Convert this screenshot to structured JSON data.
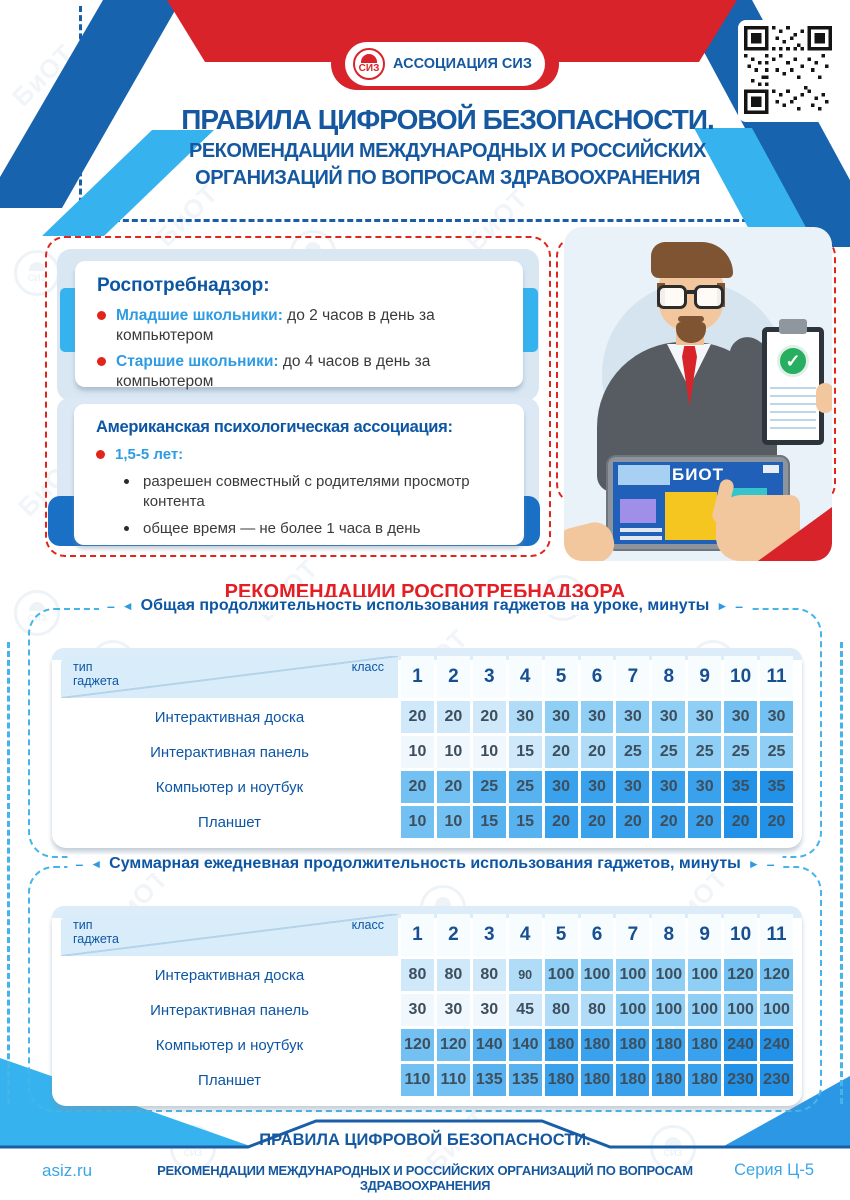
{
  "header": {
    "logo_text": "АССОЦИАЦИЯ СИЗ",
    "logo_icon": "siz-helmet-emblem",
    "siz_abbr": "СИЗ",
    "title_line1": "ПРАВИЛА ЦИФРОВОЙ БЕЗОПАСНОСТИ.",
    "title_line2": "РЕКОМЕНДАЦИИ МЕЖДУНАРОДНЫХ И РОССИЙСКИХ",
    "title_line3": "ОРГАНИЗАЦИЙ ПО ВОПРОСАМ ЗДРАВООХРАНЕНИЯ"
  },
  "info_boxes": [
    {
      "heading": "Роспотребнадзор:",
      "items": [
        {
          "label": "Младшие школьники: ",
          "text": "до 2 часов в день за компьютером"
        },
        {
          "label": "Старшие школьники: ",
          "text": "до 4 часов в день за компьютером"
        }
      ]
    },
    {
      "heading": "Американская психологическая ассоциация:",
      "age_label": "1,5-5 лет:",
      "sub_items": [
        "разрешен  совместный с родителями просмотр контента",
        "общее время — не более 1 часа в день"
      ]
    }
  ],
  "illustration": {
    "tablet_text": "БИОТ",
    "check_glyph": "✓"
  },
  "section_title": "РЕКОМЕНДАЦИИ РОСПОТРЕБНАДЗОРА",
  "tables": [
    {
      "title": "Общая продолжительность использования гаджетов на уроке, минуты",
      "corner_left": "тип гаджета",
      "corner_right": "класс",
      "columns": [
        "1",
        "2",
        "3",
        "4",
        "5",
        "6",
        "7",
        "8",
        "9",
        "10",
        "11"
      ],
      "rows": [
        {
          "label": "Интерактивная доска",
          "values": [
            20,
            20,
            20,
            30,
            30,
            30,
            30,
            30,
            30,
            30,
            30
          ],
          "shades": [
            1,
            1,
            1,
            2,
            3,
            3,
            3,
            3,
            3,
            4,
            4
          ]
        },
        {
          "label": "Интерактивная панель",
          "values": [
            10,
            10,
            10,
            15,
            20,
            20,
            25,
            25,
            25,
            25,
            25
          ],
          "shades": [
            0,
            0,
            0,
            1,
            2,
            2,
            3,
            3,
            3,
            3,
            3
          ]
        },
        {
          "label": "Компьютер и ноутбук",
          "values": [
            20,
            20,
            25,
            25,
            30,
            30,
            30,
            30,
            30,
            35,
            35
          ],
          "shades": [
            4,
            4,
            5,
            5,
            6,
            6,
            6,
            6,
            6,
            7,
            7
          ]
        },
        {
          "label": "Планшет",
          "values": [
            10,
            10,
            15,
            15,
            20,
            20,
            20,
            20,
            20,
            20,
            20
          ],
          "shades": [
            4,
            4,
            5,
            5,
            6,
            6,
            6,
            6,
            6,
            7,
            7
          ]
        }
      ]
    },
    {
      "title": "Суммарная ежедневная продолжительность использования гаджетов, минуты",
      "corner_left": "тип гаджета",
      "corner_right": "класс",
      "columns": [
        "1",
        "2",
        "3",
        "4",
        "5",
        "6",
        "7",
        "8",
        "9",
        "10",
        "11"
      ],
      "rows": [
        {
          "label": "Интерактивная доска",
          "values": [
            80,
            80,
            80,
            90,
            100,
            100,
            100,
            100,
            100,
            120,
            120
          ],
          "shades": [
            1,
            1,
            1,
            2,
            3,
            3,
            3,
            3,
            3,
            4,
            4
          ]
        },
        {
          "label": "Интерактивная панель",
          "values": [
            30,
            30,
            30,
            45,
            80,
            80,
            100,
            100,
            100,
            100,
            100
          ],
          "shades": [
            0,
            0,
            0,
            1,
            2,
            2,
            3,
            3,
            3,
            3,
            3
          ]
        },
        {
          "label": "Компьютер и ноутбук",
          "values": [
            120,
            120,
            140,
            140,
            180,
            180,
            180,
            180,
            180,
            240,
            240
          ],
          "shades": [
            4,
            4,
            5,
            5,
            6,
            6,
            6,
            6,
            6,
            7,
            7
          ]
        },
        {
          "label": "Планшет",
          "values": [
            110,
            110,
            135,
            135,
            180,
            180,
            180,
            180,
            180,
            230,
            230
          ],
          "shades": [
            4,
            4,
            5,
            5,
            6,
            6,
            6,
            6,
            6,
            7,
            7
          ]
        }
      ]
    }
  ],
  "footer": {
    "site": "asiz.ru",
    "line1": "ПРАВИЛА ЦИФРОВОЙ БЕЗОПАСНОСТИ.",
    "line2": "РЕКОМЕНДАЦИИ МЕЖДУНАРОДНЫХ И РОССИЙСКИХ ОРГАНИЗАЦИЙ ПО ВОПРОСАМ ЗДРАВООХРАНЕНИЯ",
    "series": "Серия Ц-5"
  },
  "decor": {
    "watermark_text": "БиОТ",
    "watermark_logo": "siz-emblem-ring",
    "colors": {
      "dark_blue": "#1b5ea8",
      "banner_red": "#d8232a",
      "title_red": "#e31e24",
      "cyan_accent": "#36b3ee",
      "link_blue": "#2d9ce2",
      "table_blue_dark": "#2292e8",
      "table_blue_light": "#f1f8fd"
    }
  }
}
